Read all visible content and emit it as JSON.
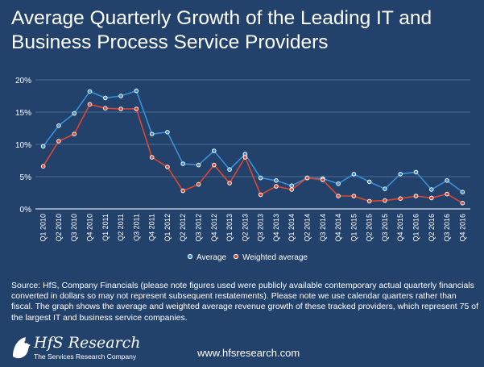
{
  "title": "Average Quarterly Growth of the Leading IT and Business Process Service Providers",
  "source_note": "Source: HfS, Company Financials (please note figures used were publicly available contemporary actual quarterly financials converted in dollars so may not represent subsequent restatements). Please note we use calendar quarters rather than fiscal. The graph shows the average and weighted average revenue growth of these tracked providers, which represent 75 of the largest IT and business service companies.",
  "logo": {
    "name": "HfS Research",
    "tagline": "The Services Research Company"
  },
  "website": "www.hfsresearch.com",
  "colors": {
    "background": "#22416b",
    "average": "#3b8fd9",
    "weighted": "#e0472e",
    "grid": "#5f7da2"
  },
  "chart_data": {
    "type": "line",
    "categories": [
      "Q1 2010",
      "Q2 2010",
      "Q3 2010",
      "Q4 2010",
      "Q1 2011",
      "Q2 2011",
      "Q3 2011",
      "Q4 2011",
      "Q1 2012",
      "Q2 2012",
      "Q3 2012",
      "Q4 2012",
      "Q1 2013",
      "Q2 2013",
      "Q3 2013",
      "Q4 2013",
      "Q1 2014",
      "Q2 2014",
      "Q3 2014",
      "Q4 2014",
      "Q1 2015",
      "Q2 2015",
      "Q3 2015",
      "Q4 2015",
      "Q1 2016",
      "Q2 2016",
      "Q3 2016",
      "Q4 2016"
    ],
    "series": [
      {
        "name": "Average",
        "color": "#3b8fd9",
        "values": [
          9.7,
          12.9,
          14.8,
          18.2,
          17.2,
          17.5,
          18.3,
          11.6,
          11.9,
          7.0,
          6.8,
          9.0,
          6.1,
          8.5,
          4.8,
          4.4,
          3.6,
          4.8,
          4.7,
          3.9,
          5.4,
          4.2,
          3.1,
          5.4,
          5.7,
          3.0,
          4.4,
          2.6
        ]
      },
      {
        "name": "Weighted average",
        "color": "#e0472e",
        "values": [
          6.6,
          10.5,
          11.6,
          16.2,
          15.6,
          15.5,
          15.5,
          8.0,
          6.5,
          2.8,
          3.8,
          6.8,
          4.0,
          8.0,
          2.2,
          3.5,
          3.0,
          4.8,
          4.5,
          2.0,
          2.0,
          1.2,
          1.3,
          1.6,
          2.0,
          1.7,
          2.3,
          0.9
        ]
      }
    ],
    "y_ticks": [
      "0%",
      "5%",
      "10%",
      "15%",
      "20%"
    ],
    "ylim": [
      0,
      20
    ],
    "grid": true,
    "legend_position": "bottom-center"
  }
}
